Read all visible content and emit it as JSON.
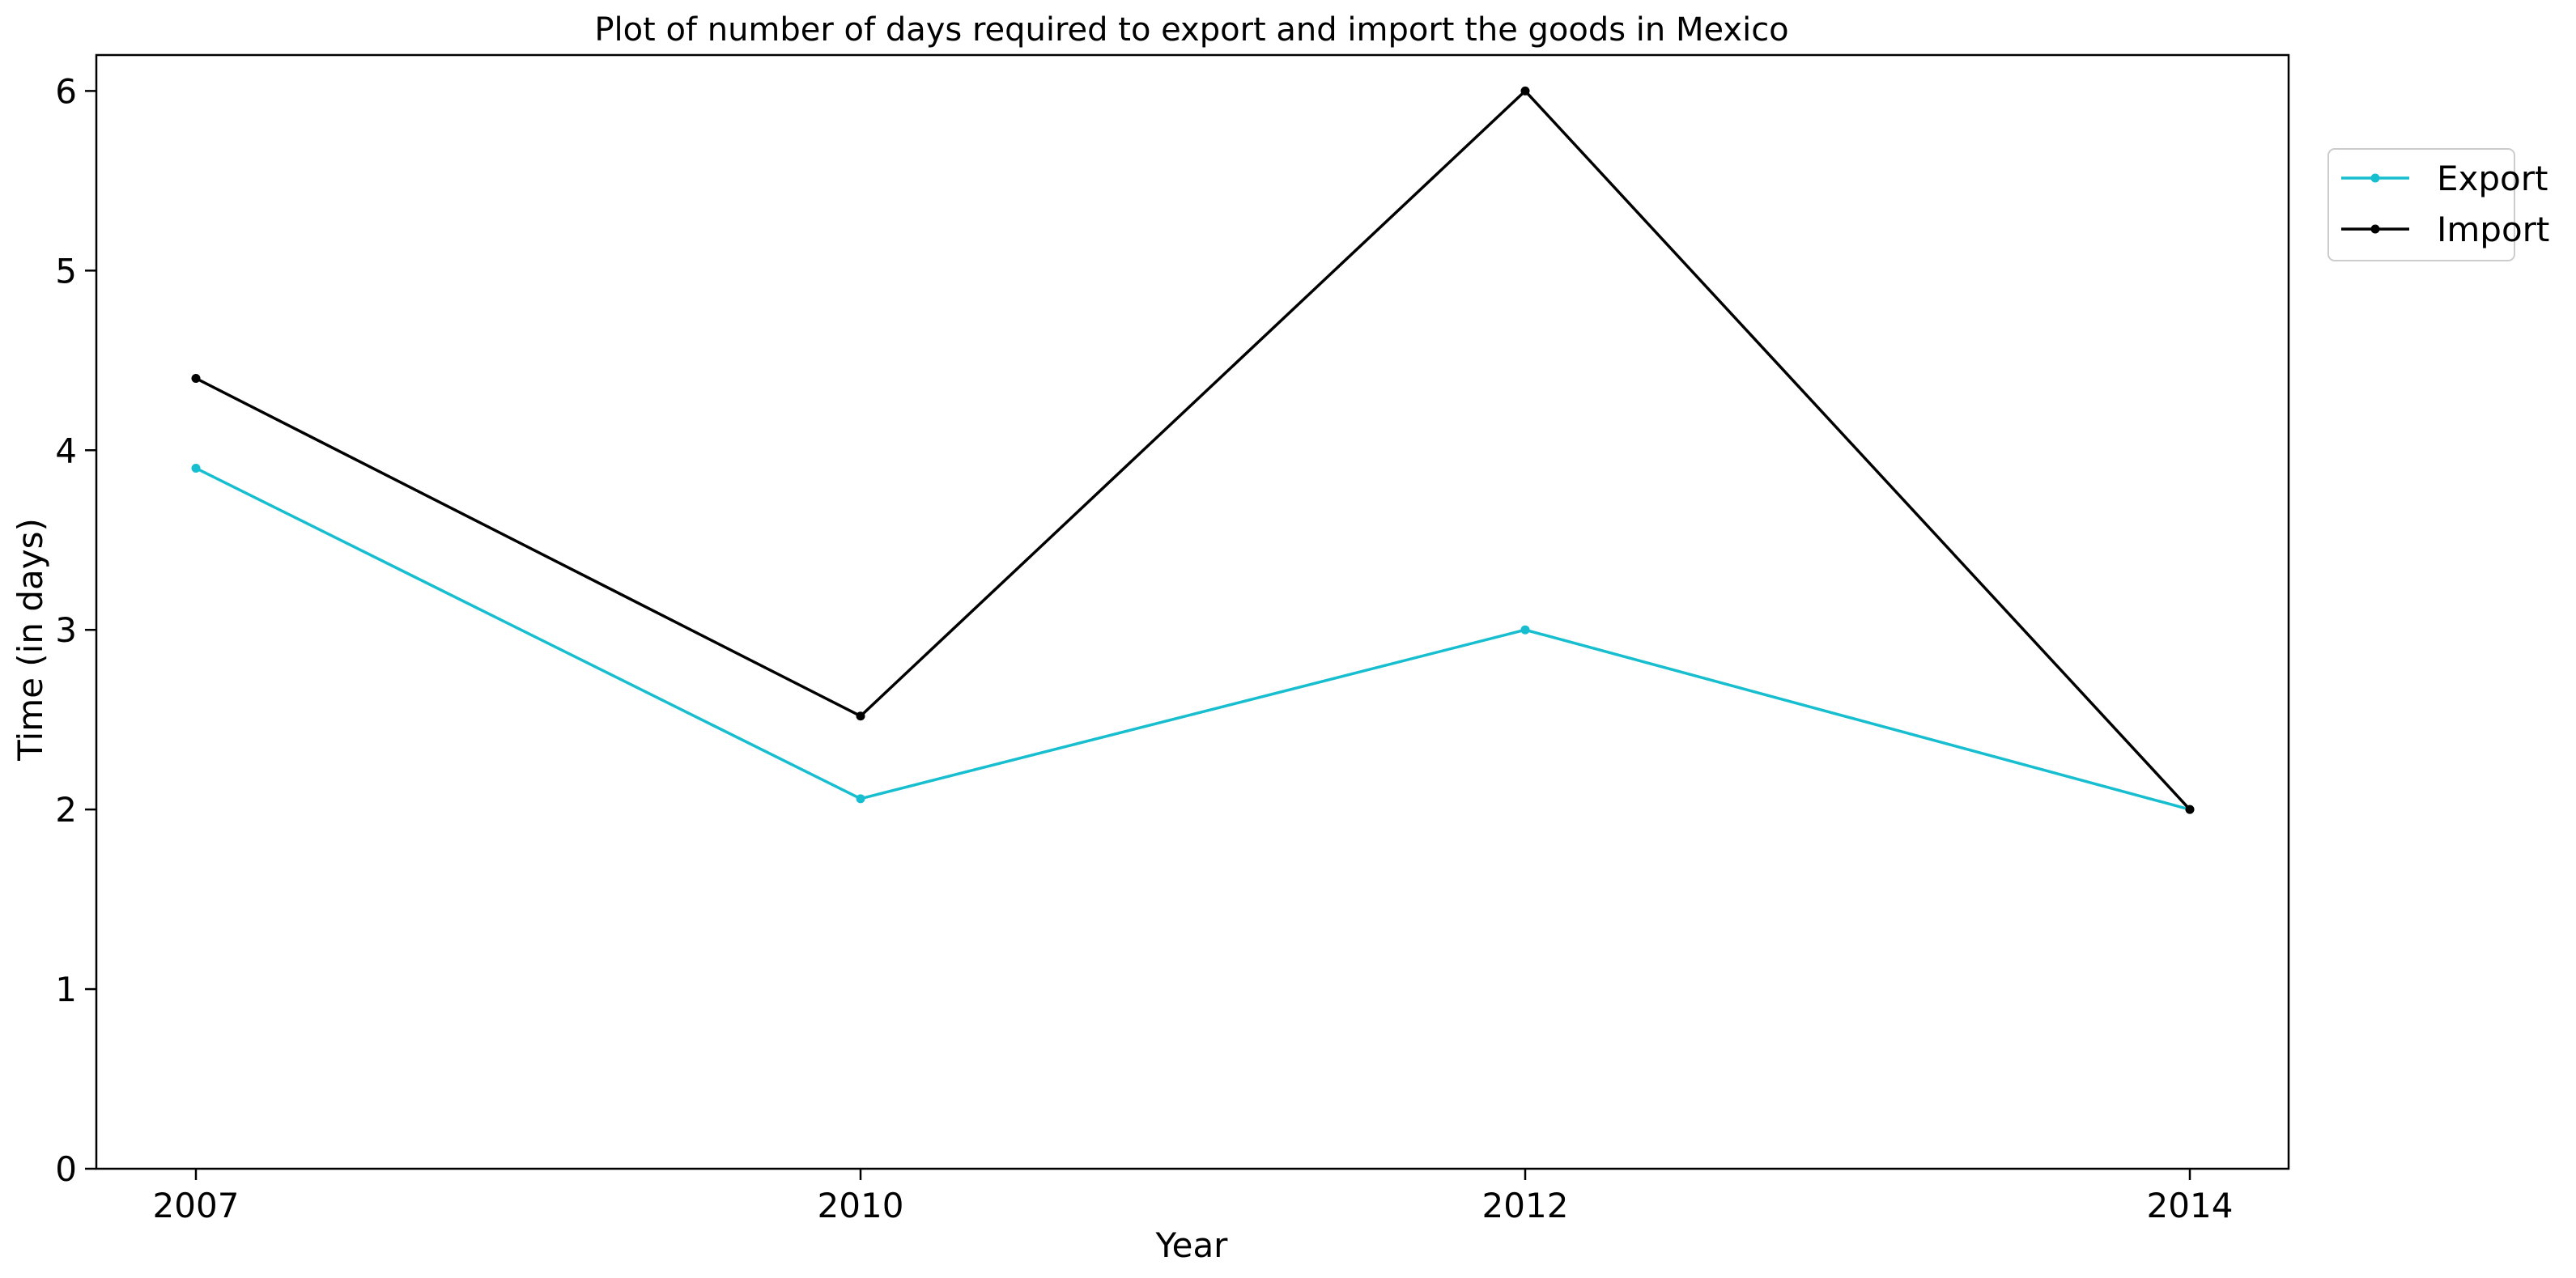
{
  "chart_data": {
    "type": "line",
    "title": "Plot of number of days required to export and import the goods in Mexico",
    "xlabel": "Year",
    "ylabel": "Time (in days)",
    "categories": [
      "2007",
      "2010",
      "2012",
      "2014"
    ],
    "ylim": [
      0,
      6.2
    ],
    "yticks": [
      0,
      1,
      2,
      3,
      4,
      5,
      6
    ],
    "grid": false,
    "legend_position": "upper-right-outside",
    "series": [
      {
        "name": "Export",
        "color": "#17becf",
        "values": [
          3.9,
          2.06,
          3.0,
          2.0
        ]
      },
      {
        "name": "Import",
        "color": "#000000",
        "values": [
          4.4,
          2.52,
          6.0,
          2.0
        ]
      }
    ]
  }
}
